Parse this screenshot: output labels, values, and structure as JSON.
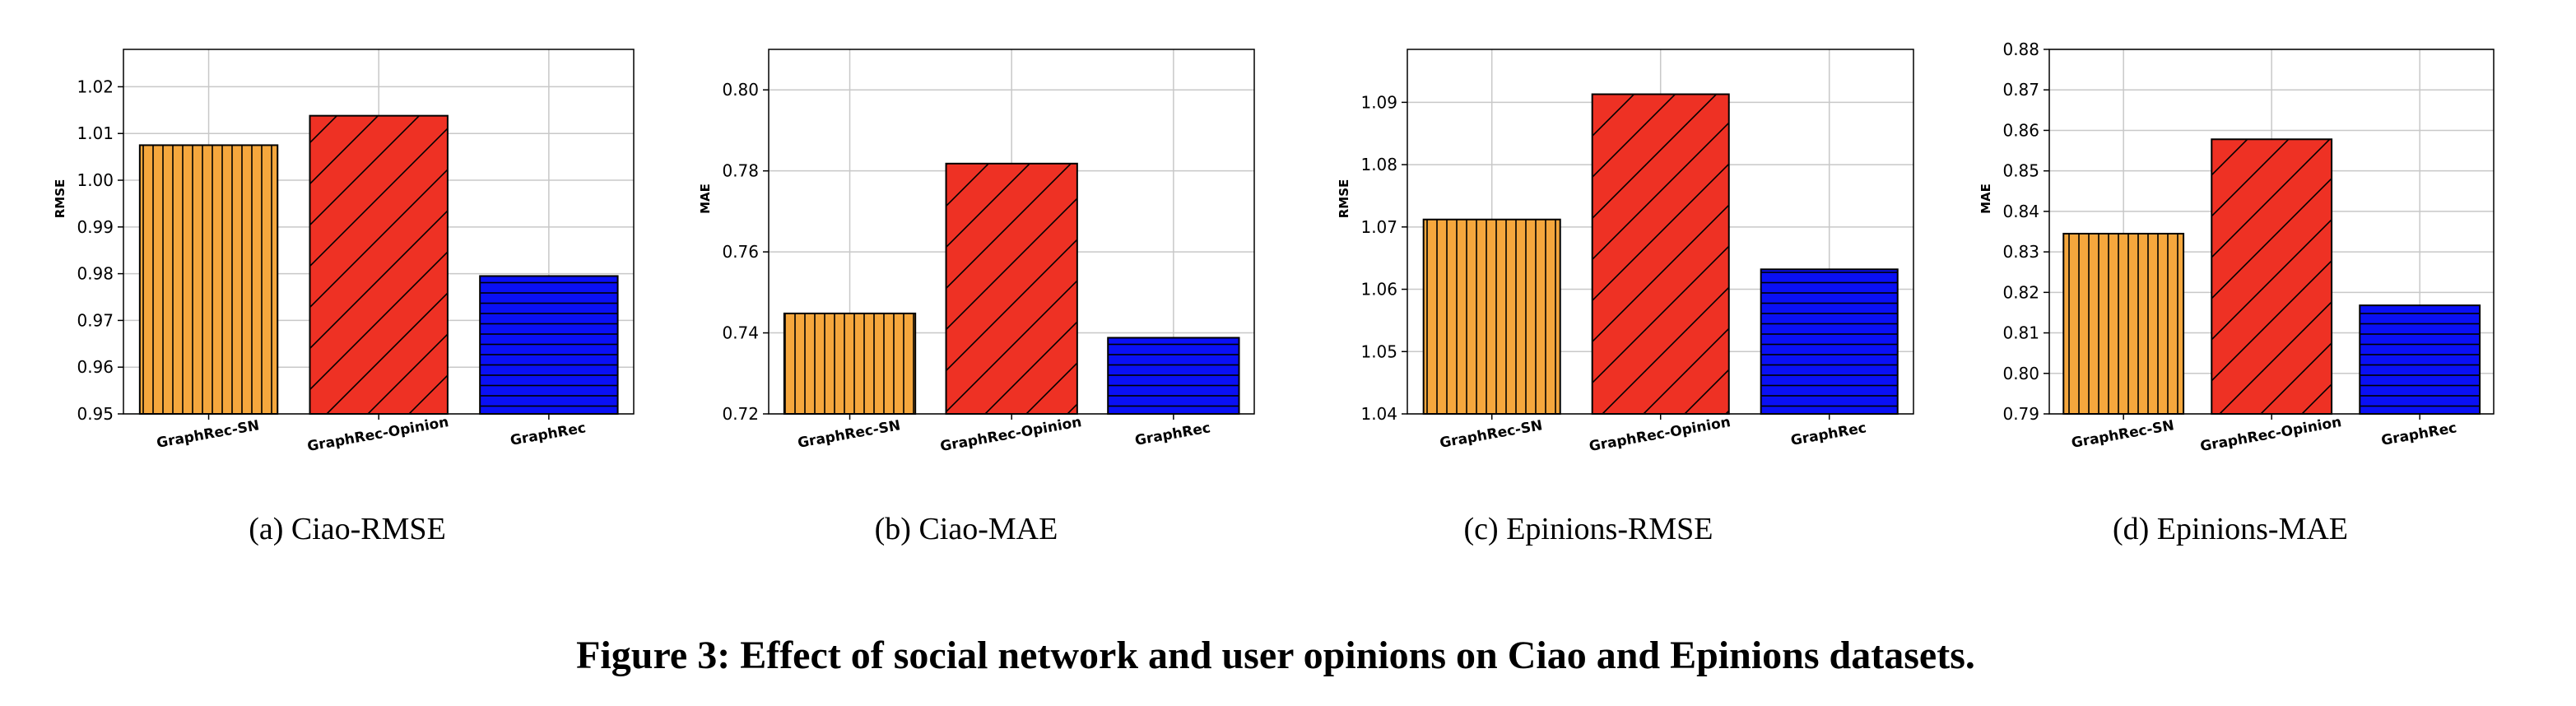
{
  "figure_caption": "Figure 3: Effect of social network and user opinions on Ciao and Epinions datasets.",
  "chart_data": [
    {
      "type": "bar",
      "subcaption": "(a)  Ciao-RMSE",
      "ylabel": "RMSE",
      "categories": [
        "GraphRec-SN",
        "GraphRec-Opinion",
        "GraphRec"
      ],
      "values": [
        1.0075,
        1.0138,
        0.9795
      ],
      "ylim": [
        0.95,
        1.028
      ],
      "yticks": [
        0.95,
        0.96,
        0.97,
        0.98,
        0.99,
        1.0,
        1.01,
        1.02
      ],
      "ytick_labels": [
        "0.95",
        "0.96",
        "0.97",
        "0.98",
        "0.99",
        "1.00",
        "1.01",
        "1.02"
      ],
      "grid": true
    },
    {
      "type": "bar",
      "subcaption": "(b)  Ciao-MAE",
      "ylabel": "MAE",
      "categories": [
        "GraphRec-SN",
        "GraphRec-Opinion",
        "GraphRec"
      ],
      "values": [
        0.7448,
        0.7818,
        0.7388
      ],
      "ylim": [
        0.72,
        0.81
      ],
      "yticks": [
        0.72,
        0.74,
        0.76,
        0.78,
        0.8
      ],
      "ytick_labels": [
        "0.72",
        "0.74",
        "0.76",
        "0.78",
        "0.80"
      ],
      "grid": true
    },
    {
      "type": "bar",
      "subcaption": "(c)  Epinions-RMSE",
      "ylabel": "RMSE",
      "categories": [
        "GraphRec-SN",
        "GraphRec-Opinion",
        "GraphRec"
      ],
      "values": [
        1.0712,
        1.0913,
        1.0632
      ],
      "ylim": [
        1.04,
        1.0985
      ],
      "yticks": [
        1.04,
        1.05,
        1.06,
        1.07,
        1.08,
        1.09
      ],
      "ytick_labels": [
        "1.04",
        "1.05",
        "1.06",
        "1.07",
        "1.08",
        "1.09"
      ],
      "grid": true
    },
    {
      "type": "bar",
      "subcaption": "(d)  Epinions-MAE",
      "ylabel": "MAE",
      "categories": [
        "GraphRec-SN",
        "GraphRec-Opinion",
        "GraphRec"
      ],
      "values": [
        0.8345,
        0.8578,
        0.8168
      ],
      "ylim": [
        0.79,
        0.88
      ],
      "yticks": [
        0.79,
        0.8,
        0.81,
        0.82,
        0.83,
        0.84,
        0.85,
        0.86,
        0.87,
        0.88
      ],
      "ytick_labels": [
        "0.79",
        "0.80",
        "0.81",
        "0.82",
        "0.83",
        "0.84",
        "0.85",
        "0.86",
        "0.87",
        "0.88"
      ],
      "grid": true
    }
  ],
  "bar_styles": [
    {
      "color": "#f5a73d",
      "hatch": "vertical"
    },
    {
      "color": "#ee3124",
      "hatch": "diagonal"
    },
    {
      "color": "#0a10f5",
      "hatch": "horizontal"
    }
  ]
}
